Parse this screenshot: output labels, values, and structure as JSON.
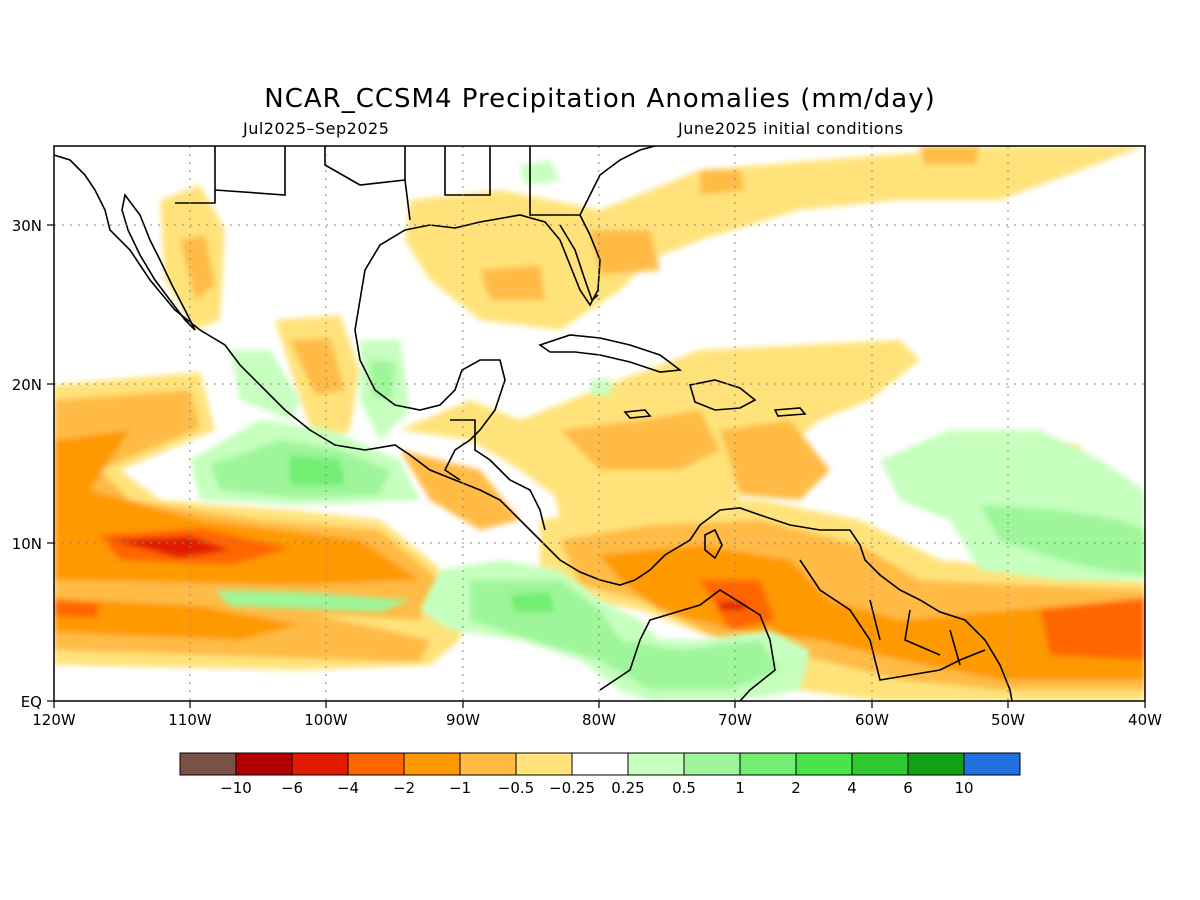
{
  "title": "NCAR_CCSM4 Precipitation Anomalies (mm/day)",
  "subtitle_left": "Jul2025–Sep2025",
  "subtitle_right": "June2025 initial conditions",
  "map": {
    "lon_range": [
      -120,
      -40
    ],
    "lat_range": [
      0,
      35
    ],
    "x_tick_labels": [
      "120W",
      "110W",
      "100W",
      "90W",
      "80W",
      "70W",
      "60W",
      "50W",
      "40W"
    ],
    "y_tick_labels": [
      "EQ",
      "10N",
      "20N",
      "30N"
    ],
    "grid": "dotted",
    "land_outline_color": "#000000"
  },
  "colorbar": {
    "colors": [
      "#7b5046",
      "#b30000",
      "#e01b00",
      "#ff6600",
      "#ff9900",
      "#ffbb44",
      "#ffe37a",
      "#ffffff",
      "#c6ffbe",
      "#9ef59a",
      "#72ee72",
      "#4ae34a",
      "#30c830",
      "#14a014",
      "#2070e0"
    ],
    "labels": [
      "−10",
      "−6",
      "−4",
      "−2",
      "−1",
      "−0.5",
      "−0.25",
      "0.25",
      "0.5",
      "1",
      "2",
      "4",
      "6",
      "10"
    ]
  }
}
